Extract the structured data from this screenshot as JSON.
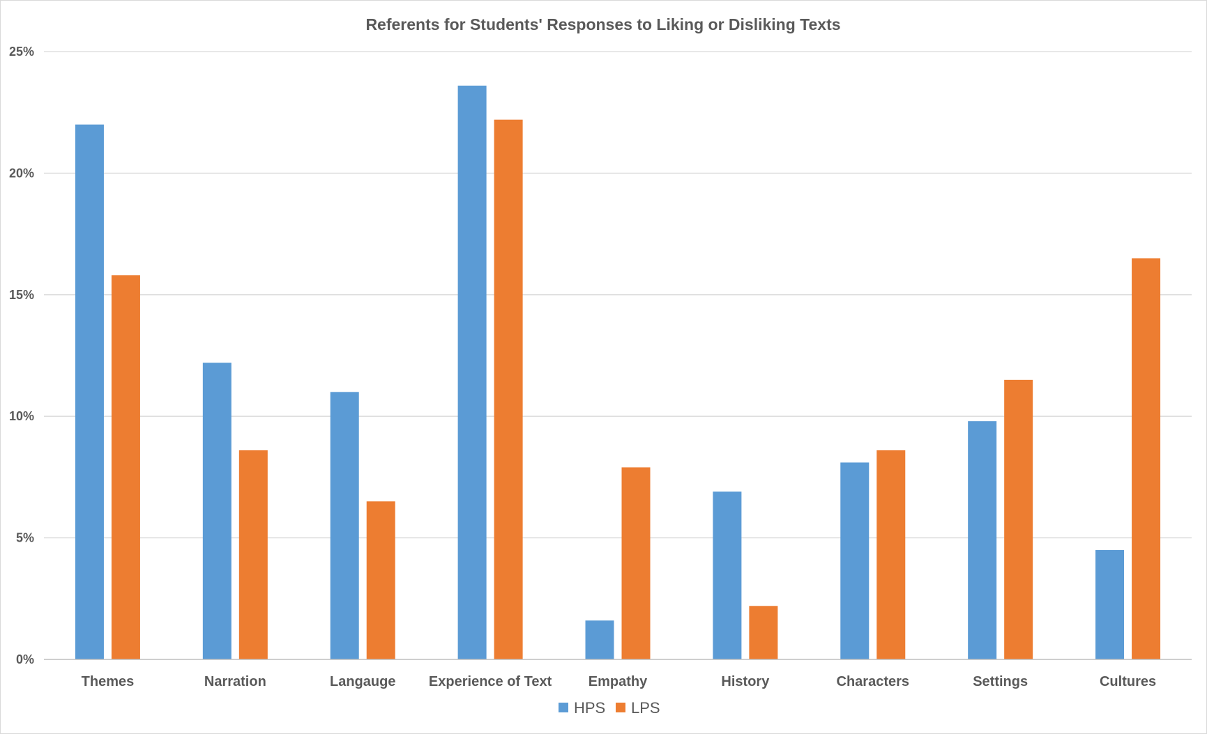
{
  "chart_data": {
    "type": "bar",
    "title": "Referents for Students' Responses to Liking or Disliking Texts",
    "xlabel": "",
    "ylabel": "",
    "ylim": [
      0,
      25
    ],
    "yticks": [
      "0%",
      "5%",
      "10%",
      "15%",
      "20%",
      "25%"
    ],
    "grid": true,
    "legend_position": "bottom",
    "categories": [
      "Themes",
      "Narration",
      "Langauge",
      "Experience of Text",
      "Empathy",
      "History",
      "Characters",
      "Settings",
      "Cultures"
    ],
    "series": [
      {
        "name": "HPS",
        "color": "#5b9bd5",
        "values": [
          22.0,
          12.2,
          11.0,
          23.6,
          1.6,
          6.9,
          8.1,
          9.8,
          4.5
        ]
      },
      {
        "name": "LPS",
        "color": "#ed7d31",
        "values": [
          15.8,
          8.6,
          6.5,
          22.2,
          7.9,
          2.2,
          8.6,
          11.5,
          16.5
        ]
      }
    ]
  }
}
